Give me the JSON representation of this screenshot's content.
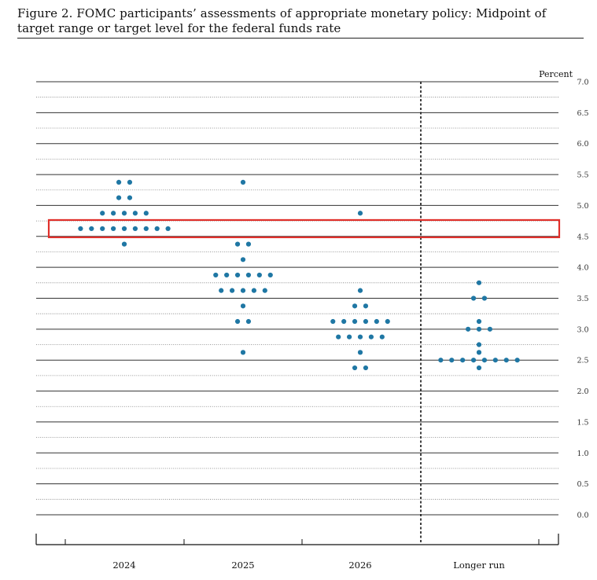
{
  "figure": {
    "caption": "Figure 2.  FOMC participants’ assessments of appropriate monetary policy:  Midpoint of target range or target level for the federal funds rate"
  },
  "chart_data": {
    "type": "scatter",
    "ylabel": "Percent",
    "ylim": [
      0.0,
      7.0
    ],
    "yticks": [
      "0.0",
      "0.5",
      "1.0",
      "1.5",
      "2.0",
      "2.5",
      "3.0",
      "3.5",
      "4.0",
      "4.5",
      "5.0",
      "5.5",
      "6.0",
      "6.5",
      "7.0"
    ],
    "categories": [
      "2024",
      "2025",
      "2026",
      "Longer run"
    ],
    "dot_color": "#1f77a4",
    "highlight_color": "#e0302b",
    "highlight_value": 4.625,
    "columns": [
      {
        "category": "2024",
        "dots": [
          {
            "value": 5.375,
            "count": 2
          },
          {
            "value": 5.125,
            "count": 2
          },
          {
            "value": 4.875,
            "count": 5
          },
          {
            "value": 4.625,
            "count": 9
          },
          {
            "value": 4.375,
            "count": 1
          }
        ]
      },
      {
        "category": "2025",
        "dots": [
          {
            "value": 5.375,
            "count": 1
          },
          {
            "value": 4.375,
            "count": 2
          },
          {
            "value": 4.125,
            "count": 1
          },
          {
            "value": 3.875,
            "count": 6
          },
          {
            "value": 3.625,
            "count": 5
          },
          {
            "value": 3.375,
            "count": 1
          },
          {
            "value": 3.125,
            "count": 2
          },
          {
            "value": 2.625,
            "count": 1
          }
        ]
      },
      {
        "category": "2026",
        "dots": [
          {
            "value": 4.875,
            "count": 1
          },
          {
            "value": 3.625,
            "count": 1
          },
          {
            "value": 3.375,
            "count": 2
          },
          {
            "value": 3.125,
            "count": 6
          },
          {
            "value": 2.875,
            "count": 5
          },
          {
            "value": 2.625,
            "count": 1
          },
          {
            "value": 2.375,
            "count": 2
          }
        ]
      },
      {
        "category": "Longer run",
        "dots": [
          {
            "value": 3.75,
            "count": 1
          },
          {
            "value": 3.5,
            "count": 2
          },
          {
            "value": 3.125,
            "count": 1
          },
          {
            "value": 3.0,
            "count": 3
          },
          {
            "value": 2.75,
            "count": 1
          },
          {
            "value": 2.625,
            "count": 1
          },
          {
            "value": 2.5,
            "count": 8
          },
          {
            "value": 2.375,
            "count": 1
          }
        ]
      }
    ]
  }
}
